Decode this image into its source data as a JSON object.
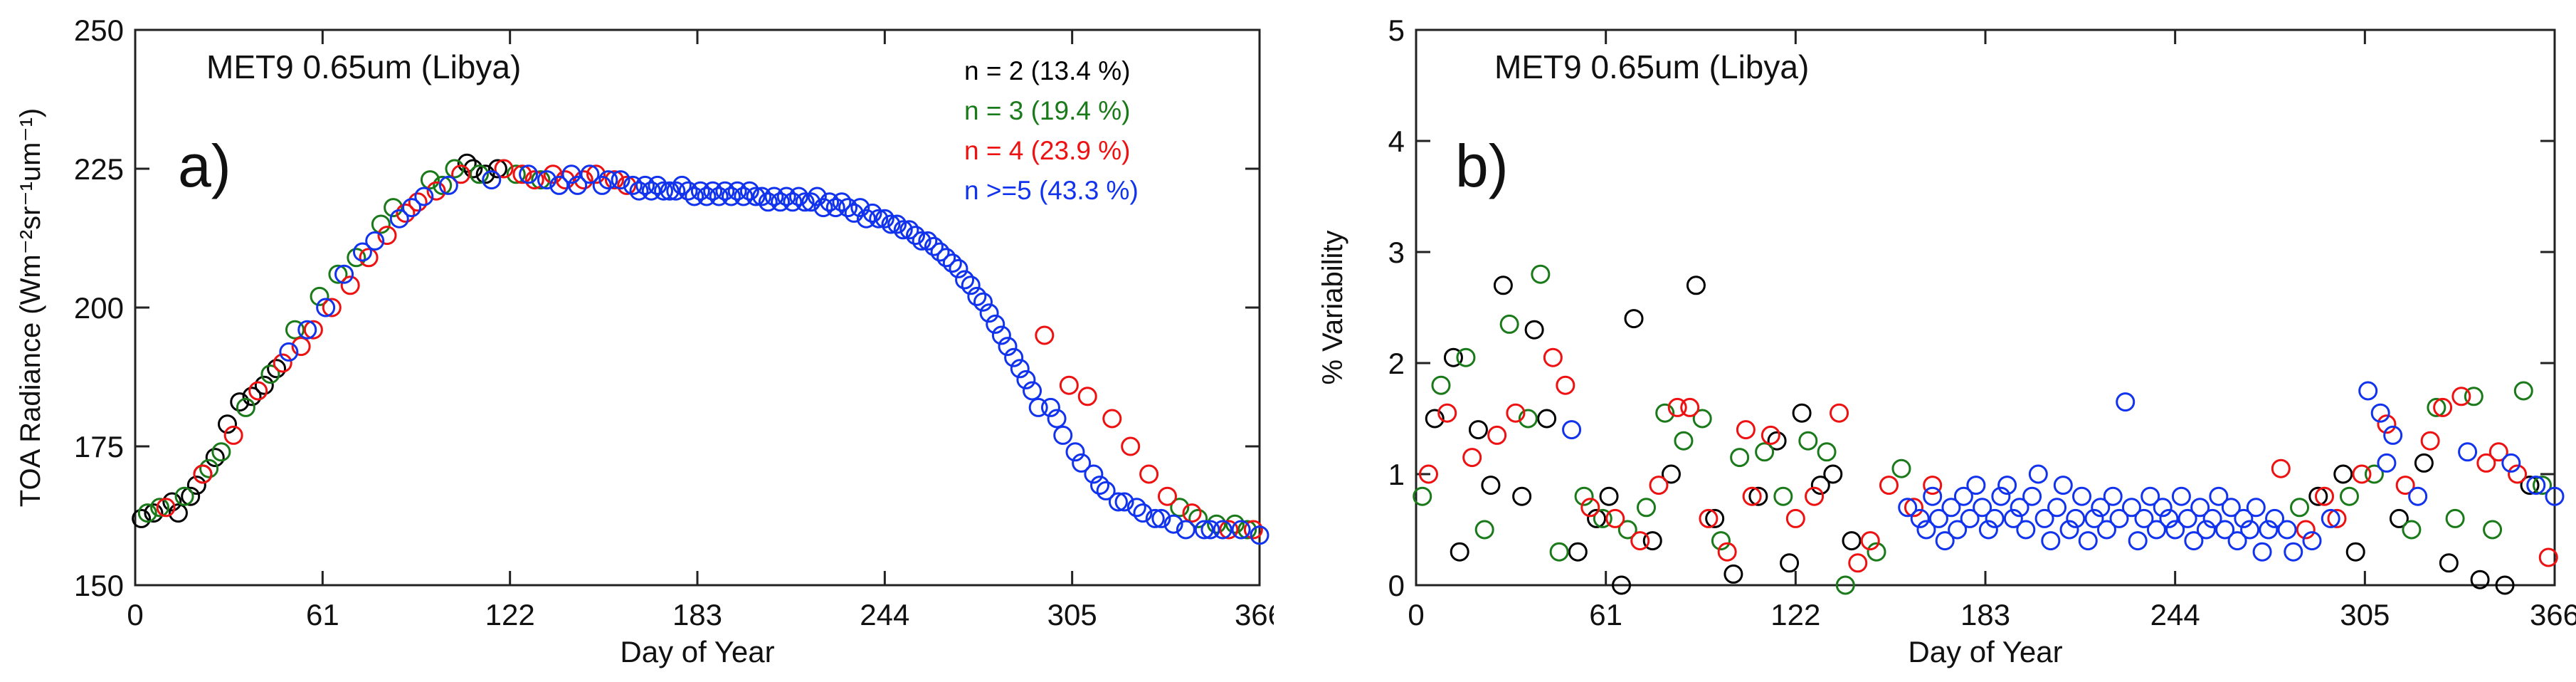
{
  "chart_data": [
    {
      "type": "scatter",
      "panel_label": "a)",
      "title": "MET9 0.65um (Libya)",
      "xlabel": "Day of Year",
      "ylabel": "TOA Radiance (Wm⁻²sr⁻¹um⁻¹)",
      "xlim": [
        0,
        366
      ],
      "ylim": [
        150,
        250
      ],
      "xticks": [
        0,
        61,
        122,
        183,
        244,
        305,
        366
      ],
      "yticks": [
        150,
        175,
        200,
        225,
        250
      ],
      "legend_position": "top-right",
      "legend": [
        {
          "label": "n =  2",
          "pct": "(13.4 %)",
          "color": "#000000"
        },
        {
          "label": "n =  3",
          "pct": "(19.4 %)",
          "color": "#1a7a1a"
        },
        {
          "label": "n =  4",
          "pct": "(23.9 %)",
          "color": "#ee1111"
        },
        {
          "label": "n >=5",
          "pct": "(43.3 %)",
          "color": "#1133ee"
        }
      ],
      "series": [
        {
          "name": "n = 2",
          "color": "#000000",
          "x": [
            2,
            6,
            12,
            14,
            18,
            20,
            22,
            26,
            30,
            34,
            38,
            42,
            46,
            108,
            110,
            114,
            118
          ],
          "y": [
            162,
            163,
            165,
            163,
            166,
            168,
            170,
            173,
            179,
            183,
            184,
            186,
            189,
            226,
            225,
            224,
            225
          ]
        },
        {
          "name": "n = 3",
          "color": "#1a7a1a",
          "x": [
            4,
            8,
            16,
            24,
            28,
            36,
            44,
            52,
            60,
            66,
            72,
            80,
            84,
            96,
            100,
            104,
            112,
            124,
            132,
            340,
            346,
            352,
            358,
            362
          ],
          "y": [
            163,
            164,
            166,
            171,
            174,
            182,
            188,
            196,
            202,
            206,
            209,
            215,
            218,
            223,
            222,
            225,
            224,
            224,
            223,
            164,
            162,
            161,
            161,
            160
          ]
        },
        {
          "name": "n = 4",
          "color": "#ee1111",
          "x": [
            10,
            22,
            32,
            40,
            48,
            54,
            58,
            64,
            70,
            76,
            82,
            88,
            92,
            98,
            106,
            120,
            126,
            130,
            136,
            140,
            146,
            150,
            156,
            160,
            296,
            304,
            310,
            318,
            324,
            330,
            336,
            344,
            356,
            364
          ],
          "y": [
            164,
            170,
            177,
            185,
            190,
            193,
            196,
            200,
            204,
            209,
            213,
            217,
            219,
            221,
            224,
            225,
            224,
            223,
            224,
            223,
            223,
            224,
            223,
            222,
            195,
            186,
            184,
            180,
            175,
            170,
            166,
            163,
            160,
            160
          ]
        },
        {
          "name": "n >= 5",
          "color": "#1133ee",
          "x": [
            50,
            56,
            62,
            68,
            74,
            78,
            86,
            90,
            94,
            102,
            116,
            128,
            134,
            138,
            142,
            144,
            148,
            152,
            154,
            158,
            162,
            164,
            166,
            168,
            170,
            172,
            174,
            176,
            178,
            180,
            182,
            184,
            186,
            188,
            190,
            192,
            194,
            196,
            198,
            200,
            202,
            204,
            206,
            208,
            210,
            212,
            214,
            216,
            218,
            220,
            222,
            224,
            226,
            228,
            230,
            232,
            234,
            236,
            238,
            240,
            242,
            244,
            246,
            248,
            250,
            252,
            254,
            256,
            258,
            260,
            262,
            264,
            266,
            268,
            270,
            272,
            274,
            276,
            278,
            280,
            282,
            284,
            286,
            288,
            290,
            292,
            294,
            298,
            300,
            302,
            306,
            308,
            312,
            314,
            316,
            320,
            322,
            326,
            328,
            332,
            334,
            338,
            342,
            348,
            350,
            354,
            360,
            366
          ],
          "y": [
            192,
            196,
            200,
            206,
            210,
            212,
            216,
            218,
            220,
            222,
            223,
            224,
            223,
            222,
            224,
            222,
            224,
            222,
            223,
            223,
            222,
            221,
            222,
            221,
            222,
            221,
            221,
            221,
            222,
            221,
            220,
            221,
            220,
            221,
            220,
            221,
            220,
            221,
            220,
            221,
            220,
            220,
            219,
            220,
            219,
            220,
            219,
            220,
            219,
            219,
            220,
            218,
            219,
            218,
            219,
            218,
            217,
            218,
            216,
            217,
            216,
            216,
            215,
            215,
            214,
            214,
            213,
            212,
            212,
            211,
            210,
            209,
            208,
            207,
            205,
            204,
            202,
            201,
            199,
            197,
            195,
            193,
            191,
            189,
            187,
            185,
            182,
            182,
            180,
            177,
            174,
            172,
            170,
            168,
            167,
            165,
            165,
            164,
            163,
            162,
            162,
            161,
            160,
            160,
            160,
            160,
            160,
            159
          ]
        }
      ]
    },
    {
      "type": "scatter",
      "panel_label": "b)",
      "title": "MET9 0.65um (Libya)",
      "xlabel": "Day of Year",
      "ylabel": "% Variability",
      "xlim": [
        0,
        366
      ],
      "ylim": [
        0,
        5
      ],
      "xticks": [
        0,
        61,
        122,
        183,
        244,
        305,
        366
      ],
      "yticks": [
        0,
        1,
        2,
        3,
        4,
        5
      ],
      "series": [
        {
          "name": "n = 2",
          "color": "#000000",
          "x": [
            6,
            12,
            14,
            20,
            24,
            28,
            34,
            38,
            42,
            52,
            58,
            62,
            66,
            70,
            76,
            82,
            90,
            96,
            102,
            110,
            116,
            120,
            124,
            130,
            134,
            140,
            290,
            298,
            302,
            316,
            324,
            332,
            342,
            350,
            358
          ],
          "y": [
            1.5,
            2.05,
            0.3,
            1.4,
            0.9,
            2.7,
            0.8,
            2.3,
            1.5,
            0.3,
            0.6,
            0.8,
            0.0,
            2.4,
            0.4,
            1.0,
            2.7,
            0.6,
            0.1,
            0.8,
            1.3,
            0.2,
            1.55,
            0.9,
            1.0,
            0.4,
            0.8,
            1.0,
            0.3,
            0.6,
            1.1,
            0.2,
            0.05,
            0.0,
            0.9
          ]
        },
        {
          "name": "n = 3",
          "color": "#1a7a1a",
          "x": [
            2,
            8,
            16,
            22,
            30,
            36,
            40,
            46,
            54,
            60,
            68,
            74,
            80,
            86,
            92,
            98,
            104,
            112,
            118,
            126,
            132,
            138,
            148,
            156,
            284,
            300,
            308,
            320,
            328,
            334,
            340,
            346,
            356,
            362
          ],
          "y": [
            0.8,
            1.8,
            2.05,
            0.5,
            2.35,
            1.5,
            2.8,
            0.3,
            0.8,
            0.6,
            0.5,
            0.7,
            1.55,
            1.3,
            1.5,
            0.4,
            1.15,
            1.2,
            0.8,
            1.3,
            1.2,
            0.0,
            0.3,
            1.05,
            0.7,
            0.8,
            1.0,
            0.5,
            1.6,
            0.6,
            1.7,
            0.5,
            1.75,
            0.9
          ]
        },
        {
          "name": "n = 4",
          "color": "#ee1111",
          "x": [
            4,
            10,
            18,
            26,
            32,
            44,
            48,
            56,
            64,
            72,
            78,
            84,
            88,
            94,
            100,
            106,
            108,
            114,
            122,
            128,
            136,
            142,
            146,
            152,
            160,
            166,
            278,
            286,
            292,
            296,
            304,
            312,
            318,
            326,
            330,
            336,
            344,
            348,
            354,
            364
          ],
          "y": [
            1.0,
            1.55,
            1.15,
            1.35,
            1.55,
            2.05,
            1.8,
            0.7,
            0.6,
            0.4,
            0.9,
            1.6,
            1.6,
            0.6,
            0.3,
            1.4,
            0.8,
            1.35,
            0.6,
            0.8,
            1.55,
            0.2,
            0.4,
            0.9,
            0.7,
            0.9,
            1.05,
            0.5,
            0.8,
            0.6,
            1.0,
            1.45,
            0.9,
            1.3,
            1.6,
            1.7,
            1.1,
            1.2,
            1.0,
            0.25
          ]
        },
        {
          "name": "n >= 5",
          "color": "#1133ee",
          "x": [
            50,
            158,
            162,
            164,
            166,
            168,
            170,
            172,
            174,
            176,
            178,
            180,
            182,
            184,
            186,
            188,
            190,
            192,
            194,
            196,
            198,
            200,
            202,
            204,
            206,
            208,
            210,
            212,
            214,
            216,
            218,
            220,
            222,
            224,
            226,
            228,
            230,
            232,
            234,
            236,
            238,
            240,
            242,
            244,
            246,
            248,
            250,
            252,
            254,
            256,
            258,
            260,
            262,
            264,
            266,
            268,
            270,
            272,
            274,
            276,
            280,
            282,
            288,
            294,
            306,
            310,
            312,
            314,
            322,
            338,
            352,
            360,
            366
          ],
          "y": [
            1.4,
            0.7,
            0.6,
            0.5,
            0.8,
            0.6,
            0.4,
            0.7,
            0.5,
            0.8,
            0.6,
            0.9,
            0.7,
            0.5,
            0.6,
            0.8,
            0.9,
            0.6,
            0.7,
            0.5,
            0.8,
            1.0,
            0.6,
            0.4,
            0.7,
            0.9,
            0.5,
            0.6,
            0.8,
            0.4,
            0.6,
            0.7,
            0.5,
            0.8,
            0.6,
            1.65,
            0.7,
            0.4,
            0.6,
            0.8,
            0.5,
            0.7,
            0.6,
            0.5,
            0.8,
            0.6,
            0.4,
            0.7,
            0.5,
            0.6,
            0.8,
            0.5,
            0.7,
            0.4,
            0.6,
            0.5,
            0.7,
            0.3,
            0.5,
            0.6,
            0.5,
            0.3,
            0.4,
            0.6,
            1.75,
            1.55,
            1.1,
            1.35,
            0.8,
            1.2,
            1.1,
            0.9,
            0.8
          ]
        }
      ]
    }
  ]
}
